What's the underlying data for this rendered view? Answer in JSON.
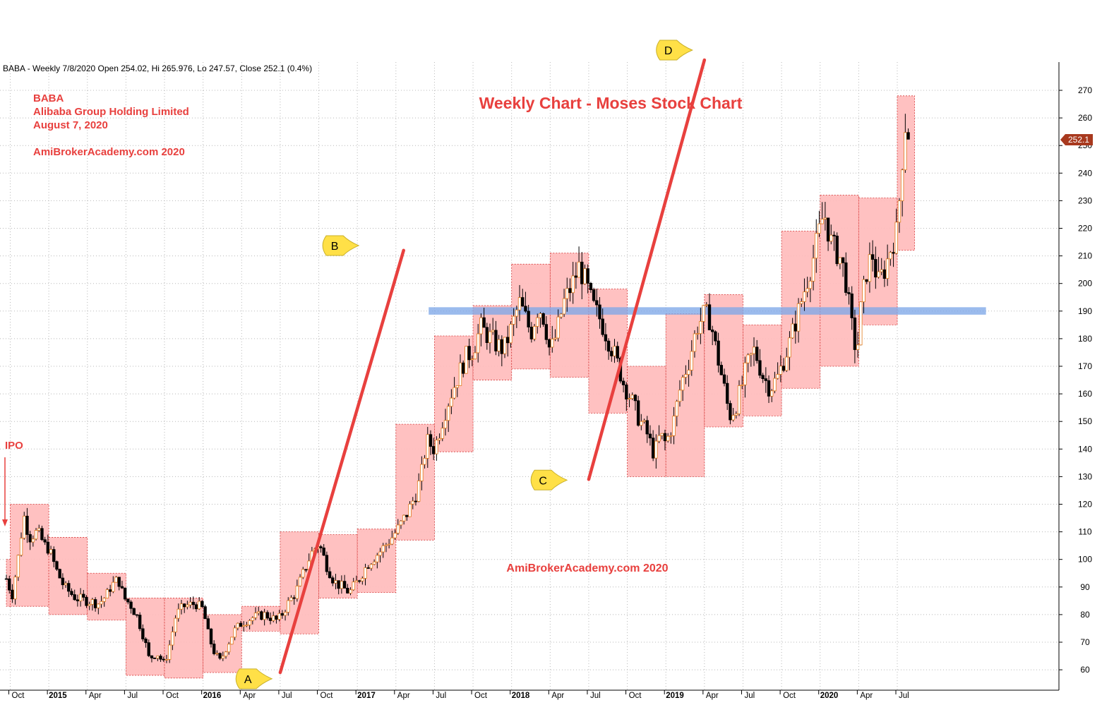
{
  "chart_data": {
    "type": "candlestick",
    "header": "BABA - Weekly 7/8/2020 Open 254.02, Hi 265.976, Lo 247.57, Close 252.1 (0.4%)",
    "title": "Weekly Chart - Moses Stock Chart",
    "watermark": "AmiBrokerAcademy.com  2020",
    "info_lines": [
      "BABA",
      "Alibaba Group Holding Limited",
      "August 7, 2020",
      "",
      "AmiBrokerAcademy.com  2020"
    ],
    "ylim": [
      55,
      280
    ],
    "yticks": [
      60,
      70,
      80,
      90,
      100,
      110,
      120,
      130,
      140,
      150,
      160,
      170,
      180,
      190,
      200,
      210,
      220,
      230,
      240,
      250,
      260,
      270
    ],
    "last_price_label": "252.1",
    "last_price": 252.1,
    "xticks": [
      {
        "label": "Oct",
        "bold": false,
        "x": 0.0
      },
      {
        "label": "2015",
        "bold": true,
        "x": 1.0
      },
      {
        "label": "Apr",
        "bold": false,
        "x": 2.0
      },
      {
        "label": "Jul",
        "bold": false,
        "x": 3.0
      },
      {
        "label": "Oct",
        "bold": false,
        "x": 4.0
      },
      {
        "label": "2016",
        "bold": true,
        "x": 5.0
      },
      {
        "label": "Apr",
        "bold": false,
        "x": 6.0
      },
      {
        "label": "Jul",
        "bold": false,
        "x": 7.0
      },
      {
        "label": "Oct",
        "bold": false,
        "x": 8.0
      },
      {
        "label": "2017",
        "bold": true,
        "x": 9.0
      },
      {
        "label": "Apr",
        "bold": false,
        "x": 10.0
      },
      {
        "label": "Jul",
        "bold": false,
        "x": 11.0
      },
      {
        "label": "Oct",
        "bold": false,
        "x": 12.0
      },
      {
        "label": "2018",
        "bold": true,
        "x": 13.0
      },
      {
        "label": "Apr",
        "bold": false,
        "x": 14.0
      },
      {
        "label": "Jul",
        "bold": false,
        "x": 15.0
      },
      {
        "label": "Oct",
        "bold": false,
        "x": 16.0
      },
      {
        "label": "2019",
        "bold": true,
        "x": 17.0
      },
      {
        "label": "Apr",
        "bold": false,
        "x": 18.0
      },
      {
        "label": "Jul",
        "bold": false,
        "x": 19.0
      },
      {
        "label": "Oct",
        "bold": false,
        "x": 20.0
      },
      {
        "label": "2020",
        "bold": true,
        "x": 21.0
      },
      {
        "label": "Apr",
        "bold": false,
        "x": 22.0
      },
      {
        "label": "Jul",
        "bold": false,
        "x": 23.0
      }
    ],
    "moses_boxes": [
      {
        "x0": -0.1,
        "x1": 0.0,
        "low": 83,
        "high": 100
      },
      {
        "x0": 0.0,
        "x1": 1.0,
        "low": 83,
        "high": 120
      },
      {
        "x0": 1.0,
        "x1": 2.0,
        "low": 80,
        "high": 108
      },
      {
        "x0": 2.0,
        "x1": 3.0,
        "low": 78,
        "high": 95
      },
      {
        "x0": 3.0,
        "x1": 4.0,
        "low": 58,
        "high": 86
      },
      {
        "x0": 4.0,
        "x1": 5.0,
        "low": 57,
        "high": 86
      },
      {
        "x0": 5.0,
        "x1": 6.0,
        "low": 59,
        "high": 80
      },
      {
        "x0": 6.0,
        "x1": 7.0,
        "low": 74,
        "high": 83
      },
      {
        "x0": 7.0,
        "x1": 8.0,
        "low": 73,
        "high": 110
      },
      {
        "x0": 8.0,
        "x1": 9.0,
        "low": 86,
        "high": 109
      },
      {
        "x0": 9.0,
        "x1": 10.0,
        "low": 88,
        "high": 111
      },
      {
        "x0": 10.0,
        "x1": 11.0,
        "low": 107,
        "high": 149
      },
      {
        "x0": 11.0,
        "x1": 12.0,
        "low": 139,
        "high": 181
      },
      {
        "x0": 12.0,
        "x1": 13.0,
        "low": 165,
        "high": 192
      },
      {
        "x0": 13.0,
        "x1": 14.0,
        "low": 169,
        "high": 207
      },
      {
        "x0": 14.0,
        "x1": 15.0,
        "low": 166,
        "high": 211
      },
      {
        "x0": 15.0,
        "x1": 16.0,
        "low": 153,
        "high": 198
      },
      {
        "x0": 16.0,
        "x1": 17.0,
        "low": 130,
        "high": 170
      },
      {
        "x0": 17.0,
        "x1": 18.0,
        "low": 130,
        "high": 189
      },
      {
        "x0": 18.0,
        "x1": 19.0,
        "low": 148,
        "high": 196
      },
      {
        "x0": 19.0,
        "x1": 20.0,
        "low": 152,
        "high": 185
      },
      {
        "x0": 20.0,
        "x1": 21.0,
        "low": 162,
        "high": 219
      },
      {
        "x0": 21.0,
        "x1": 22.0,
        "low": 170,
        "high": 232
      },
      {
        "x0": 22.0,
        "x1": 23.0,
        "low": 185,
        "high": 231
      },
      {
        "x0": 23.0,
        "x1": 23.45,
        "low": 212,
        "high": 268
      }
    ],
    "close_path": [
      [
        -0.1,
        93
      ],
      [
        0.05,
        87
      ],
      [
        0.2,
        100
      ],
      [
        0.35,
        116
      ],
      [
        0.5,
        108
      ],
      [
        0.7,
        110
      ],
      [
        0.9,
        105
      ],
      [
        1.0,
        104
      ],
      [
        1.2,
        96
      ],
      [
        1.4,
        90
      ],
      [
        1.7,
        86
      ],
      [
        2.0,
        85
      ],
      [
        2.3,
        84
      ],
      [
        2.5,
        87
      ],
      [
        2.6,
        90
      ],
      [
        2.8,
        93
      ],
      [
        2.95,
        86
      ],
      [
        3.1,
        84
      ],
      [
        3.3,
        79
      ],
      [
        3.5,
        70
      ],
      [
        3.6,
        64
      ],
      [
        3.8,
        66
      ],
      [
        4.0,
        62
      ],
      [
        4.15,
        70
      ],
      [
        4.3,
        80
      ],
      [
        4.5,
        83
      ],
      [
        4.8,
        84
      ],
      [
        5.0,
        82
      ],
      [
        5.15,
        72
      ],
      [
        5.3,
        66
      ],
      [
        5.45,
        63
      ],
      [
        5.6,
        68
      ],
      [
        5.8,
        74
      ],
      [
        6.0,
        77
      ],
      [
        6.3,
        79
      ],
      [
        6.6,
        80
      ],
      [
        6.9,
        78
      ],
      [
        7.0,
        79
      ],
      [
        7.2,
        84
      ],
      [
        7.4,
        88
      ],
      [
        7.6,
        95
      ],
      [
        7.8,
        102
      ],
      [
        8.0,
        106
      ],
      [
        8.2,
        98
      ],
      [
        8.4,
        92
      ],
      [
        8.6,
        90
      ],
      [
        8.8,
        88
      ],
      [
        9.0,
        92
      ],
      [
        9.3,
        99
      ],
      [
        9.6,
        103
      ],
      [
        9.9,
        108
      ],
      [
        10.1,
        112
      ],
      [
        10.3,
        117
      ],
      [
        10.5,
        123
      ],
      [
        10.65,
        130
      ],
      [
        10.8,
        143
      ],
      [
        11.0,
        140
      ],
      [
        11.2,
        150
      ],
      [
        11.4,
        159
      ],
      [
        11.6,
        166
      ],
      [
        11.8,
        173
      ],
      [
        12.0,
        176
      ],
      [
        12.2,
        184
      ],
      [
        12.4,
        181
      ],
      [
        12.6,
        178
      ],
      [
        12.8,
        176
      ],
      [
        13.0,
        184
      ],
      [
        13.2,
        193
      ],
      [
        13.35,
        188
      ],
      [
        13.5,
        182
      ],
      [
        13.7,
        192
      ],
      [
        13.85,
        187
      ],
      [
        14.0,
        175
      ],
      [
        14.15,
        181
      ],
      [
        14.35,
        193
      ],
      [
        14.55,
        199
      ],
      [
        14.75,
        206
      ],
      [
        14.9,
        201
      ],
      [
        15.1,
        192
      ],
      [
        15.3,
        187
      ],
      [
        15.5,
        180
      ],
      [
        15.7,
        173
      ],
      [
        15.9,
        164
      ],
      [
        16.1,
        158
      ],
      [
        16.3,
        151
      ],
      [
        16.5,
        146
      ],
      [
        16.7,
        138
      ],
      [
        16.85,
        145
      ],
      [
        17.0,
        142
      ],
      [
        17.2,
        150
      ],
      [
        17.4,
        164
      ],
      [
        17.6,
        172
      ],
      [
        17.8,
        184
      ],
      [
        18.0,
        189
      ],
      [
        18.15,
        187
      ],
      [
        18.3,
        176
      ],
      [
        18.5,
        163
      ],
      [
        18.65,
        152
      ],
      [
        18.8,
        155
      ],
      [
        18.95,
        162
      ],
      [
        19.1,
        170
      ],
      [
        19.3,
        176
      ],
      [
        19.5,
        167
      ],
      [
        19.7,
        162
      ],
      [
        19.9,
        166
      ],
      [
        20.0,
        170
      ],
      [
        20.2,
        178
      ],
      [
        20.4,
        188
      ],
      [
        20.6,
        198
      ],
      [
        20.8,
        208
      ],
      [
        21.0,
        220
      ],
      [
        21.1,
        226
      ],
      [
        21.3,
        214
      ],
      [
        21.5,
        210
      ],
      [
        21.65,
        203
      ],
      [
        21.8,
        186
      ],
      [
        21.95,
        174
      ],
      [
        22.05,
        190
      ],
      [
        22.2,
        204
      ],
      [
        22.35,
        211
      ],
      [
        22.5,
        200
      ],
      [
        22.7,
        206
      ],
      [
        22.85,
        214
      ],
      [
        23.0,
        219
      ],
      [
        23.1,
        240
      ],
      [
        23.2,
        258
      ],
      [
        23.35,
        252
      ]
    ],
    "resistance_band": {
      "x0": 10.85,
      "x1": 25.3,
      "low": 188.7,
      "high": 191.4
    },
    "trend_lines": [
      {
        "name": "A-B",
        "from": [
          7.0,
          59
        ],
        "to": [
          10.2,
          212
        ]
      },
      {
        "name": "C-D",
        "from": [
          15.0,
          129
        ],
        "to": [
          18.0,
          281
        ]
      }
    ],
    "callouts": [
      {
        "label": "A",
        "x": 6.2,
        "y": 57
      },
      {
        "label": "B",
        "x": 8.45,
        "y": 214
      },
      {
        "label": "C",
        "x": 13.85,
        "y": 129
      },
      {
        "label": "D",
        "x": 17.1,
        "y": 290
      }
    ],
    "annotation": "IPO"
  }
}
